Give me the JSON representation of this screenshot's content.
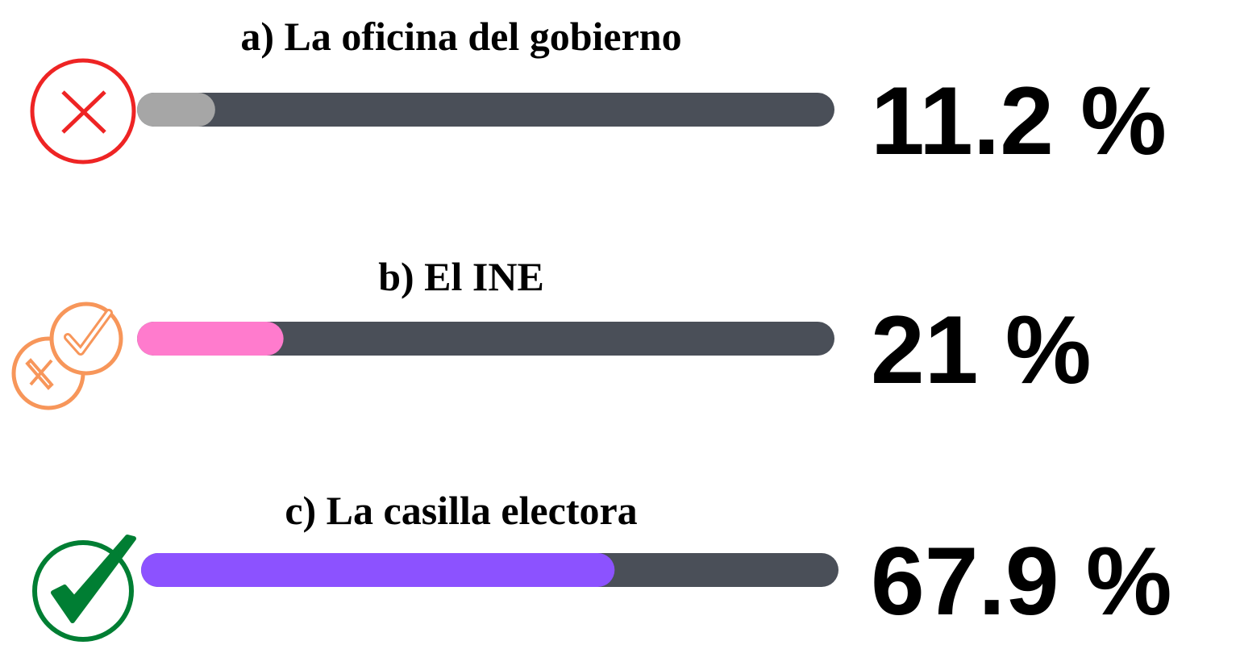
{
  "chart_data": {
    "type": "bar",
    "orientation": "horizontal",
    "categories": [
      "a) La oficina del gobierno",
      "b) El INE",
      "c) La casilla electora"
    ],
    "values": [
      11.2,
      21,
      67.9
    ],
    "value_labels": [
      "11.2 %",
      "21 %",
      "67.9 %"
    ],
    "colors": [
      "#a6a6a6",
      "#ff7bcd",
      "#8c52ff"
    ],
    "track_color": "#4a4f58",
    "xlim": [
      0,
      100
    ]
  }
}
